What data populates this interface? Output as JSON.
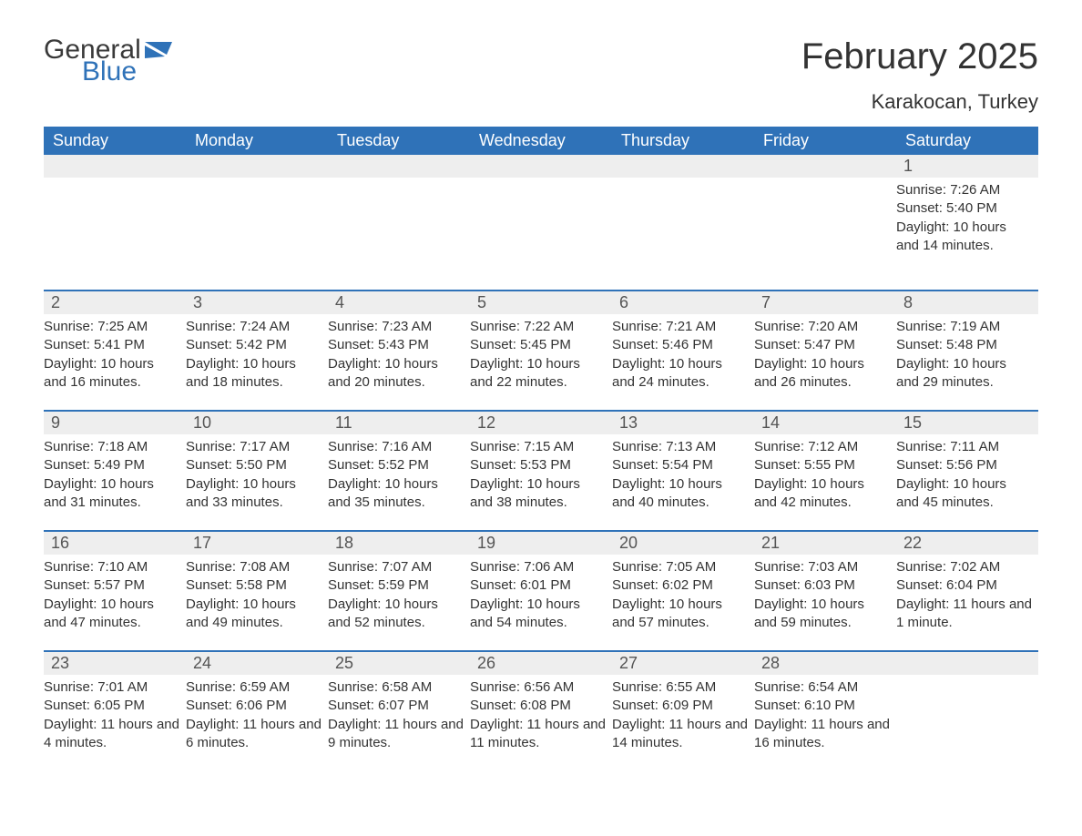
{
  "logo": {
    "general": "General",
    "blue": "Blue"
  },
  "title": "February 2025",
  "location": "Karakocan, Turkey",
  "colors": {
    "header_bg": "#2f72b8",
    "header_text": "#ffffff",
    "day_stripe_bg": "#eeeeee",
    "day_stripe_border": "#2f72b8",
    "body_text": "#333333",
    "logo_gray": "#3a3a3a",
    "logo_blue": "#2f72b8",
    "page_bg": "#ffffff"
  },
  "typography": {
    "title_fontsize": 40,
    "location_fontsize": 22,
    "weekday_fontsize": 18,
    "daynum_fontsize": 18,
    "body_fontsize": 15
  },
  "weekdays": [
    "Sunday",
    "Monday",
    "Tuesday",
    "Wednesday",
    "Thursday",
    "Friday",
    "Saturday"
  ],
  "weeks": [
    [
      null,
      null,
      null,
      null,
      null,
      null,
      {
        "n": "1",
        "sunrise": "7:26 AM",
        "sunset": "5:40 PM",
        "daylight": "10 hours and 14 minutes."
      }
    ],
    [
      {
        "n": "2",
        "sunrise": "7:25 AM",
        "sunset": "5:41 PM",
        "daylight": "10 hours and 16 minutes."
      },
      {
        "n": "3",
        "sunrise": "7:24 AM",
        "sunset": "5:42 PM",
        "daylight": "10 hours and 18 minutes."
      },
      {
        "n": "4",
        "sunrise": "7:23 AM",
        "sunset": "5:43 PM",
        "daylight": "10 hours and 20 minutes."
      },
      {
        "n": "5",
        "sunrise": "7:22 AM",
        "sunset": "5:45 PM",
        "daylight": "10 hours and 22 minutes."
      },
      {
        "n": "6",
        "sunrise": "7:21 AM",
        "sunset": "5:46 PM",
        "daylight": "10 hours and 24 minutes."
      },
      {
        "n": "7",
        "sunrise": "7:20 AM",
        "sunset": "5:47 PM",
        "daylight": "10 hours and 26 minutes."
      },
      {
        "n": "8",
        "sunrise": "7:19 AM",
        "sunset": "5:48 PM",
        "daylight": "10 hours and 29 minutes."
      }
    ],
    [
      {
        "n": "9",
        "sunrise": "7:18 AM",
        "sunset": "5:49 PM",
        "daylight": "10 hours and 31 minutes."
      },
      {
        "n": "10",
        "sunrise": "7:17 AM",
        "sunset": "5:50 PM",
        "daylight": "10 hours and 33 minutes."
      },
      {
        "n": "11",
        "sunrise": "7:16 AM",
        "sunset": "5:52 PM",
        "daylight": "10 hours and 35 minutes."
      },
      {
        "n": "12",
        "sunrise": "7:15 AM",
        "sunset": "5:53 PM",
        "daylight": "10 hours and 38 minutes."
      },
      {
        "n": "13",
        "sunrise": "7:13 AM",
        "sunset": "5:54 PM",
        "daylight": "10 hours and 40 minutes."
      },
      {
        "n": "14",
        "sunrise": "7:12 AM",
        "sunset": "5:55 PM",
        "daylight": "10 hours and 42 minutes."
      },
      {
        "n": "15",
        "sunrise": "7:11 AM",
        "sunset": "5:56 PM",
        "daylight": "10 hours and 45 minutes."
      }
    ],
    [
      {
        "n": "16",
        "sunrise": "7:10 AM",
        "sunset": "5:57 PM",
        "daylight": "10 hours and 47 minutes."
      },
      {
        "n": "17",
        "sunrise": "7:08 AM",
        "sunset": "5:58 PM",
        "daylight": "10 hours and 49 minutes."
      },
      {
        "n": "18",
        "sunrise": "7:07 AM",
        "sunset": "5:59 PM",
        "daylight": "10 hours and 52 minutes."
      },
      {
        "n": "19",
        "sunrise": "7:06 AM",
        "sunset": "6:01 PM",
        "daylight": "10 hours and 54 minutes."
      },
      {
        "n": "20",
        "sunrise": "7:05 AM",
        "sunset": "6:02 PM",
        "daylight": "10 hours and 57 minutes."
      },
      {
        "n": "21",
        "sunrise": "7:03 AM",
        "sunset": "6:03 PM",
        "daylight": "10 hours and 59 minutes."
      },
      {
        "n": "22",
        "sunrise": "7:02 AM",
        "sunset": "6:04 PM",
        "daylight": "11 hours and 1 minute."
      }
    ],
    [
      {
        "n": "23",
        "sunrise": "7:01 AM",
        "sunset": "6:05 PM",
        "daylight": "11 hours and 4 minutes."
      },
      {
        "n": "24",
        "sunrise": "6:59 AM",
        "sunset": "6:06 PM",
        "daylight": "11 hours and 6 minutes."
      },
      {
        "n": "25",
        "sunrise": "6:58 AM",
        "sunset": "6:07 PM",
        "daylight": "11 hours and 9 minutes."
      },
      {
        "n": "26",
        "sunrise": "6:56 AM",
        "sunset": "6:08 PM",
        "daylight": "11 hours and 11 minutes."
      },
      {
        "n": "27",
        "sunrise": "6:55 AM",
        "sunset": "6:09 PM",
        "daylight": "11 hours and 14 minutes."
      },
      {
        "n": "28",
        "sunrise": "6:54 AM",
        "sunset": "6:10 PM",
        "daylight": "11 hours and 16 minutes."
      },
      null
    ]
  ],
  "labels": {
    "sunrise": "Sunrise: ",
    "sunset": "Sunset: ",
    "daylight": "Daylight: "
  }
}
